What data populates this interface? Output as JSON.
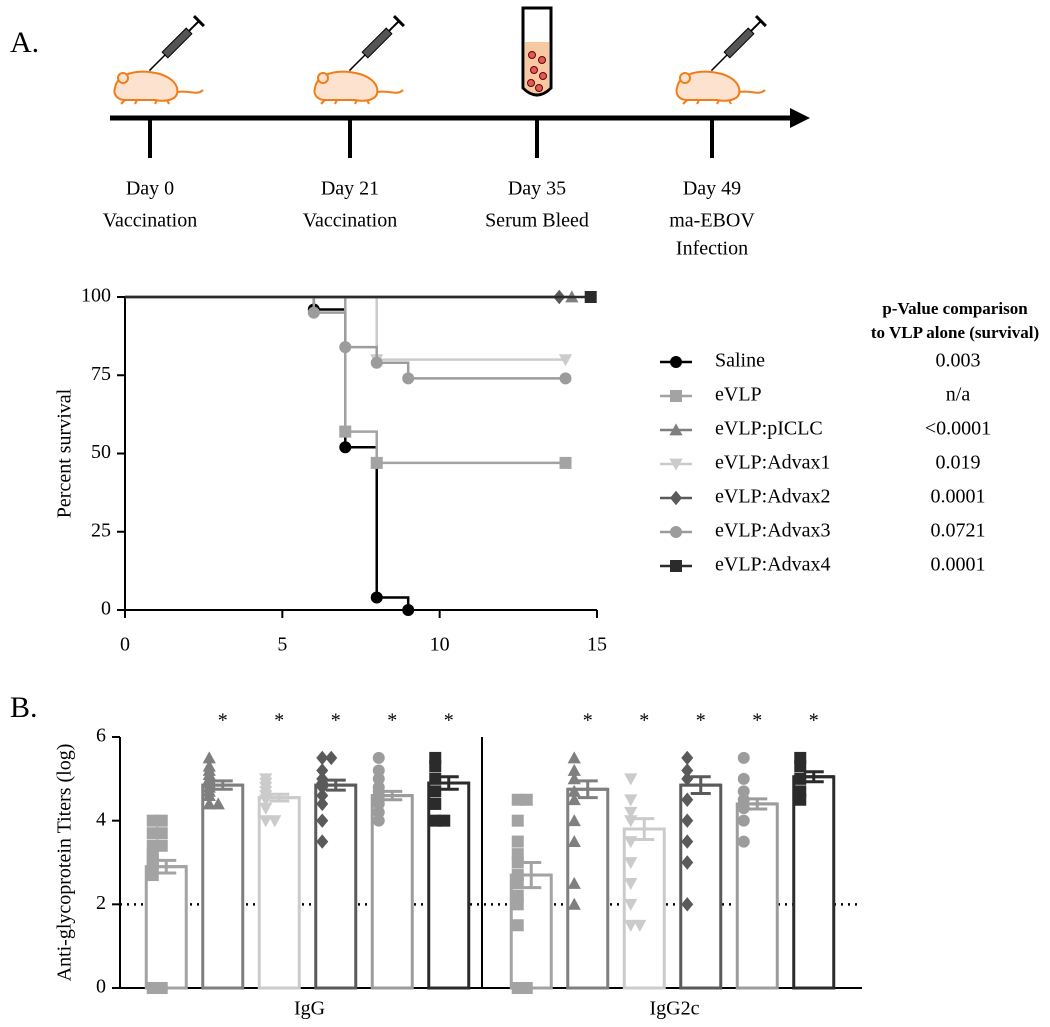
{
  "timeline": {
    "label": "A.",
    "events": [
      {
        "day": "Day 0",
        "lines": [
          "Vaccination"
        ]
      },
      {
        "day": "Day 21",
        "lines": [
          "Vaccination"
        ]
      },
      {
        "day": "Day 35",
        "lines": [
          "Serum Bleed"
        ]
      },
      {
        "day": "Day 49",
        "lines": [
          "ma-EBOV",
          "Infection"
        ]
      }
    ]
  },
  "panel_b_label": "B.",
  "chart_data": [
    {
      "type": "line",
      "step": true,
      "ylabel": "Percent survival",
      "xlim": [
        0,
        15
      ],
      "xticks": [
        0,
        5,
        10,
        15
      ],
      "ylim": [
        0,
        100
      ],
      "yticks": [
        0,
        25,
        50,
        75,
        100
      ],
      "legend_title": [
        "p-Value comparison",
        "to VLP alone (survival)"
      ],
      "series": [
        {
          "name": "Saline",
          "color": "#000000",
          "marker": "circle",
          "p_value": "0.003",
          "x": [
            0,
            6,
            7,
            8,
            9
          ],
          "values": [
            100,
            96,
            52,
            4,
            0
          ]
        },
        {
          "name": "eVLP",
          "color": "#a3a3a3",
          "marker": "square",
          "p_value": "n/a",
          "x": [
            0,
            7,
            8,
            14
          ],
          "values": [
            100,
            57,
            47,
            47
          ]
        },
        {
          "name": "eVLP:pICLC",
          "color": "#7f7f7f",
          "marker": "triangle",
          "p_value": "<0.0001",
          "x": [
            0,
            14.2
          ],
          "values": [
            100,
            100
          ]
        },
        {
          "name": "eVLP:Advax1",
          "color": "#cbcbcb",
          "marker": "triangle-down",
          "p_value": "0.019",
          "x": [
            0,
            8,
            14
          ],
          "values": [
            100,
            80,
            80
          ]
        },
        {
          "name": "eVLP:Advax2",
          "color": "#5a5a5a",
          "marker": "diamond",
          "p_value": "0.0001",
          "x": [
            0,
            13.8
          ],
          "values": [
            100,
            100
          ]
        },
        {
          "name": "eVLP:Advax3",
          "color": "#9c9c9c",
          "marker": "circle",
          "p_value": "0.0721",
          "x": [
            0,
            6,
            7,
            8,
            9,
            14
          ],
          "values": [
            100,
            95,
            84,
            79,
            74,
            74
          ]
        },
        {
          "name": "eVLP:Advax4",
          "color": "#2b2b2b",
          "marker": "square",
          "p_value": "0.0001",
          "x": [
            0,
            14.8
          ],
          "values": [
            100,
            100
          ]
        }
      ]
    },
    {
      "type": "bar",
      "ylabel": "Anti-glycoprotein Titers (log)",
      "categories": [
        "IgG",
        "IgG2c"
      ],
      "ylim": [
        0,
        6
      ],
      "yticks": [
        0,
        2,
        4,
        6
      ],
      "reference_line": 2,
      "series": [
        {
          "color": "#a3a3a3",
          "marker": "square",
          "values": [
            2.9,
            2.7
          ],
          "errors": [
            0.15,
            0.3
          ],
          "labels": [
            null,
            null
          ],
          "points": [
            [
              0,
              0,
              2.7,
              2.9,
              3.0,
              3.1,
              3.2,
              3.4,
              3.4,
              3.7,
              3.7,
              4.0,
              4.0
            ],
            [
              0,
              0,
              1.5,
              2.0,
              2.2,
              2.5,
              2.7,
              3.0,
              3.2,
              3.5,
              4.0,
              4.5,
              4.5
            ]
          ]
        },
        {
          "color": "#7f7f7f",
          "marker": "triangle",
          "values": [
            4.85,
            4.75
          ],
          "errors": [
            0.1,
            0.2
          ],
          "labels": [
            "*",
            "*"
          ],
          "points": [
            [
              4.4,
              4.4,
              4.6,
              4.7,
              4.8,
              4.9,
              5.0,
              5.1,
              5.2,
              5.3,
              5.5
            ],
            [
              2.0,
              2.5,
              3.5,
              4.0,
              4.5,
              4.7,
              5.0,
              5.2,
              5.5
            ]
          ]
        },
        {
          "color": "#cbcbcb",
          "marker": "triangle-down",
          "values": [
            4.55,
            3.8
          ],
          "errors": [
            0.08,
            0.25
          ],
          "labels": [
            "*",
            "*"
          ],
          "points": [
            [
              4.0,
              4.0,
              4.3,
              4.5,
              4.6,
              4.7,
              4.8,
              4.9,
              5.0
            ],
            [
              1.5,
              1.5,
              2.0,
              2.5,
              3.0,
              3.5,
              4.0,
              4.2,
              4.5,
              5.0
            ]
          ]
        },
        {
          "color": "#5a5a5a",
          "marker": "diamond",
          "values": [
            4.85,
            4.85
          ],
          "errors": [
            0.12,
            0.2
          ],
          "labels": [
            "*",
            "*"
          ],
          "points": [
            [
              3.5,
              4.0,
              4.4,
              4.6,
              4.8,
              4.9,
              5.0,
              5.2,
              5.5,
              5.5
            ],
            [
              2.0,
              3.0,
              3.5,
              4.0,
              4.5,
              5.0,
              5.2,
              5.5
            ]
          ]
        },
        {
          "color": "#9c9c9c",
          "marker": "circle",
          "values": [
            4.6,
            4.4
          ],
          "errors": [
            0.1,
            0.12
          ],
          "labels": [
            "*",
            "*"
          ],
          "points": [
            [
              4.0,
              4.2,
              4.4,
              4.5,
              4.6,
              4.7,
              4.8,
              5.0,
              5.2,
              5.5
            ],
            [
              3.5,
              4.0,
              4.3,
              4.5,
              4.7,
              5.0,
              5.5
            ]
          ]
        },
        {
          "color": "#2b2b2b",
          "marker": "square",
          "values": [
            4.9,
            5.05
          ],
          "errors": [
            0.15,
            0.12
          ],
          "labels": [
            "*",
            "*"
          ],
          "points": [
            [
              4.0,
              4.0,
              4.4,
              4.7,
              5.0,
              5.3,
              5.5
            ],
            [
              4.5,
              4.7,
              5.0,
              5.3,
              5.5
            ]
          ]
        }
      ]
    }
  ]
}
